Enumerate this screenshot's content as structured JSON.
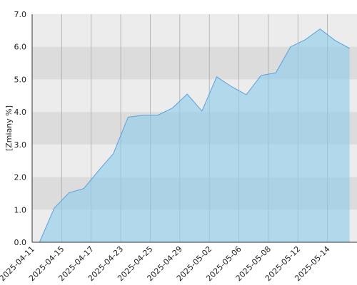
{
  "chart_data": {
    "type": "area",
    "y_label": "[Zmiany %]",
    "categories": [
      "2025-04-11",
      null,
      "2025-04-15",
      null,
      "2025-04-17",
      null,
      "2025-04-23",
      null,
      "2025-04-25",
      null,
      "2025-04-29",
      null,
      "2025-05-02",
      null,
      "2025-05-06",
      null,
      "2025-05-08",
      null,
      "2025-05-12",
      null,
      "2025-05-14",
      null
    ],
    "values": [
      0.0,
      1.05,
      1.52,
      1.65,
      2.2,
      2.72,
      3.84,
      3.9,
      3.9,
      4.12,
      4.55,
      4.03,
      5.08,
      4.78,
      4.53,
      5.12,
      5.2,
      6.0,
      6.22,
      6.55,
      6.2,
      5.95
    ],
    "color": "#5a9fe0",
    "ylim": [
      0,
      7
    ],
    "yticks": [
      {
        "value": 0,
        "label": "0.0"
      },
      {
        "value": 1,
        "label": "1.0"
      },
      {
        "value": 2,
        "label": "2.0"
      },
      {
        "value": 3,
        "label": "3.0"
      },
      {
        "value": 4,
        "label": "4.0"
      },
      {
        "value": 5,
        "label": "5.0"
      },
      {
        "value": 6,
        "label": "6.0"
      },
      {
        "value": 7,
        "label": "7.0"
      }
    ],
    "grid": true
  }
}
